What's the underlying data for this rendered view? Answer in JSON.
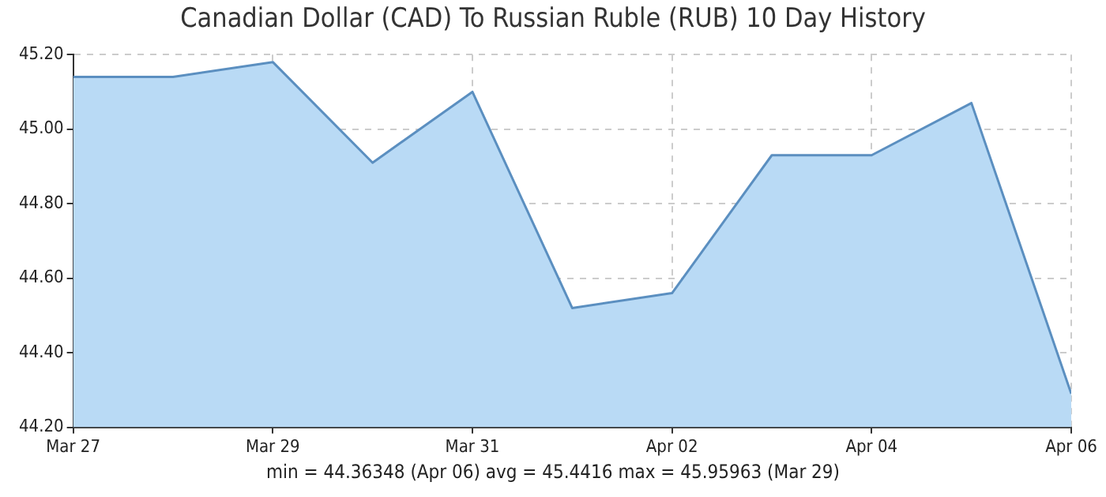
{
  "chart_data": {
    "type": "area",
    "title": "Canadian Dollar (CAD) To Russian Ruble (RUB) 10 Day History",
    "x": [
      "--03-27",
      "--03-28",
      "--03-29",
      "--03-30",
      "--03-31",
      "--04-01",
      "--04-02",
      "--04-03",
      "--04-04",
      "--04-05",
      "--04-06"
    ],
    "series": [
      {
        "color": "#5b8fc0",
        "values": [
          45.14,
          45.14,
          45.18,
          44.91,
          45.1,
          44.52,
          44.56,
          44.93,
          44.93,
          45.07,
          44.29
        ]
      }
    ],
    "xlim": [
      "--03-27",
      "--04-06"
    ],
    "xticks": [
      {
        "value": "--03-27",
        "label": "Mar 27"
      },
      {
        "value": "--03-29",
        "label": "Mar 29"
      },
      {
        "value": "--03-31",
        "label": "Mar 31"
      },
      {
        "value": "--04-02",
        "label": "Apr 02"
      },
      {
        "value": "--04-04",
        "label": "Apr 04"
      },
      {
        "value": "--04-06",
        "label": "Apr 06"
      }
    ],
    "ylim": [
      44.2,
      45.2
    ],
    "yticks": [
      {
        "value": 44.2,
        "label": "44.20"
      },
      {
        "value": 44.4,
        "label": "44.40"
      },
      {
        "value": 44.6,
        "label": "44.60"
      },
      {
        "value": 44.8,
        "label": "44.80"
      },
      {
        "value": 45.0,
        "label": "45.00"
      },
      {
        "value": 45.2,
        "label": "45.20"
      }
    ],
    "grid": true,
    "legend": false,
    "marker": "none",
    "line_style": "solid",
    "annotations": [
      "min = 44.36348 (Apr 06)  avg = 45.4416  max = 45.95963 (Mar 29)"
    ]
  }
}
